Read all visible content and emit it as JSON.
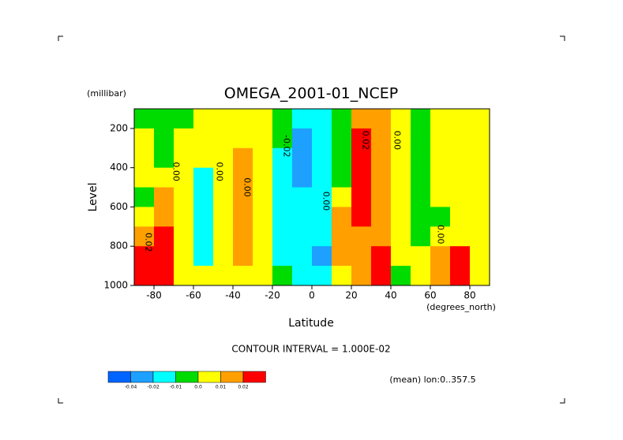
{
  "chart_data": {
    "type": "contour",
    "title": "OMEGA_2001-01_NCEP",
    "y_unit": "(millibar)",
    "ylabel": "Level",
    "xlabel": "Latitude",
    "x_unit": "(degrees_north)",
    "subtitle": "CONTOUR INTERVAL = 1.000E-02",
    "note": "(mean) lon:0..357.5",
    "xlim": [
      -90,
      90
    ],
    "ylim": [
      1000,
      100
    ],
    "xticks": [
      -80,
      -60,
      -40,
      -20,
      0,
      20,
      40,
      60,
      80
    ],
    "yticks": [
      200,
      400,
      600,
      800,
      1000
    ],
    "x": [
      -85,
      -75,
      -65,
      -55,
      -45,
      -35,
      -25,
      -15,
      -5,
      5,
      15,
      25,
      35,
      45,
      55,
      65,
      75,
      85
    ],
    "y": [
      150,
      250,
      350,
      450,
      550,
      650,
      750,
      850,
      950
    ],
    "z": [
      [
        -0.005,
        -0.005,
        -0.005,
        0.005,
        0.005,
        0.005,
        0.005,
        -0.005,
        -0.015,
        -0.015,
        -0.005,
        0.015,
        0.015,
        0.005,
        -0.005,
        0.005,
        0.005,
        0.005
      ],
      [
        0.005,
        -0.005,
        0.005,
        0.005,
        0.005,
        0.005,
        0.005,
        -0.005,
        -0.03,
        -0.015,
        -0.005,
        0.025,
        0.015,
        0.005,
        -0.005,
        0.005,
        0.005,
        0.005
      ],
      [
        0.005,
        -0.005,
        0.005,
        0.005,
        0.005,
        0.015,
        0.005,
        -0.015,
        -0.03,
        -0.015,
        -0.005,
        0.025,
        0.015,
        0.005,
        -0.005,
        0.005,
        0.005,
        0.005
      ],
      [
        0.005,
        0.005,
        0.005,
        -0.015,
        0.005,
        0.015,
        0.005,
        -0.015,
        -0.03,
        -0.015,
        -0.005,
        0.025,
        0.015,
        0.005,
        -0.005,
        0.005,
        0.005,
        0.005
      ],
      [
        -0.005,
        0.015,
        0.005,
        -0.015,
        0.005,
        0.015,
        0.005,
        -0.015,
        -0.015,
        -0.015,
        0.005,
        0.025,
        0.015,
        0.005,
        -0.005,
        0.005,
        0.005,
        0.005
      ],
      [
        0.005,
        0.015,
        0.005,
        -0.015,
        0.005,
        0.015,
        0.005,
        -0.015,
        -0.015,
        -0.015,
        0.015,
        0.025,
        0.015,
        0.005,
        -0.005,
        -0.005,
        0.005,
        0.005
      ],
      [
        0.015,
        0.025,
        0.005,
        -0.015,
        0.005,
        0.015,
        0.005,
        -0.015,
        -0.015,
        -0.015,
        0.015,
        0.015,
        0.015,
        0.005,
        -0.005,
        0.005,
        0.005,
        0.005
      ],
      [
        0.025,
        0.025,
        0.005,
        -0.015,
        0.005,
        0.015,
        0.005,
        -0.015,
        -0.015,
        -0.03,
        0.015,
        0.015,
        0.025,
        0.005,
        0.005,
        0.015,
        0.025,
        0.005
      ],
      [
        0.025,
        0.025,
        0.005,
        0.005,
        0.005,
        0.005,
        0.005,
        -0.005,
        -0.015,
        -0.015,
        0.005,
        0.015,
        0.025,
        -0.005,
        0.005,
        0.015,
        0.025,
        0.005
      ]
    ],
    "levels": [
      -0.04,
      -0.02,
      -0.01,
      {
        "value": 0,
        "label": "0.0"
      },
      0.01,
      0.02
    ],
    "colors": [
      "#0064ff",
      "#1ea0ff",
      "#00ffff",
      "#00dc00",
      "#ffff00",
      "#ffa000",
      "#ff0000"
    ],
    "contour_labels": [
      {
        "text": "0.02",
        "x": -83,
        "y": 780
      },
      {
        "text": "0.00",
        "x": -69,
        "y": 420
      },
      {
        "text": "0.00",
        "x": -47,
        "y": 420
      },
      {
        "text": "0.00",
        "x": -33,
        "y": 500
      },
      {
        "text": "-0.02",
        "x": -13,
        "y": 290
      },
      {
        "text": "0.00",
        "x": 7,
        "y": 570
      },
      {
        "text": "0.02",
        "x": 27,
        "y": 260
      },
      {
        "text": "0.00",
        "x": 43,
        "y": 260
      },
      {
        "text": "0.00",
        "x": 65,
        "y": 740
      }
    ]
  }
}
